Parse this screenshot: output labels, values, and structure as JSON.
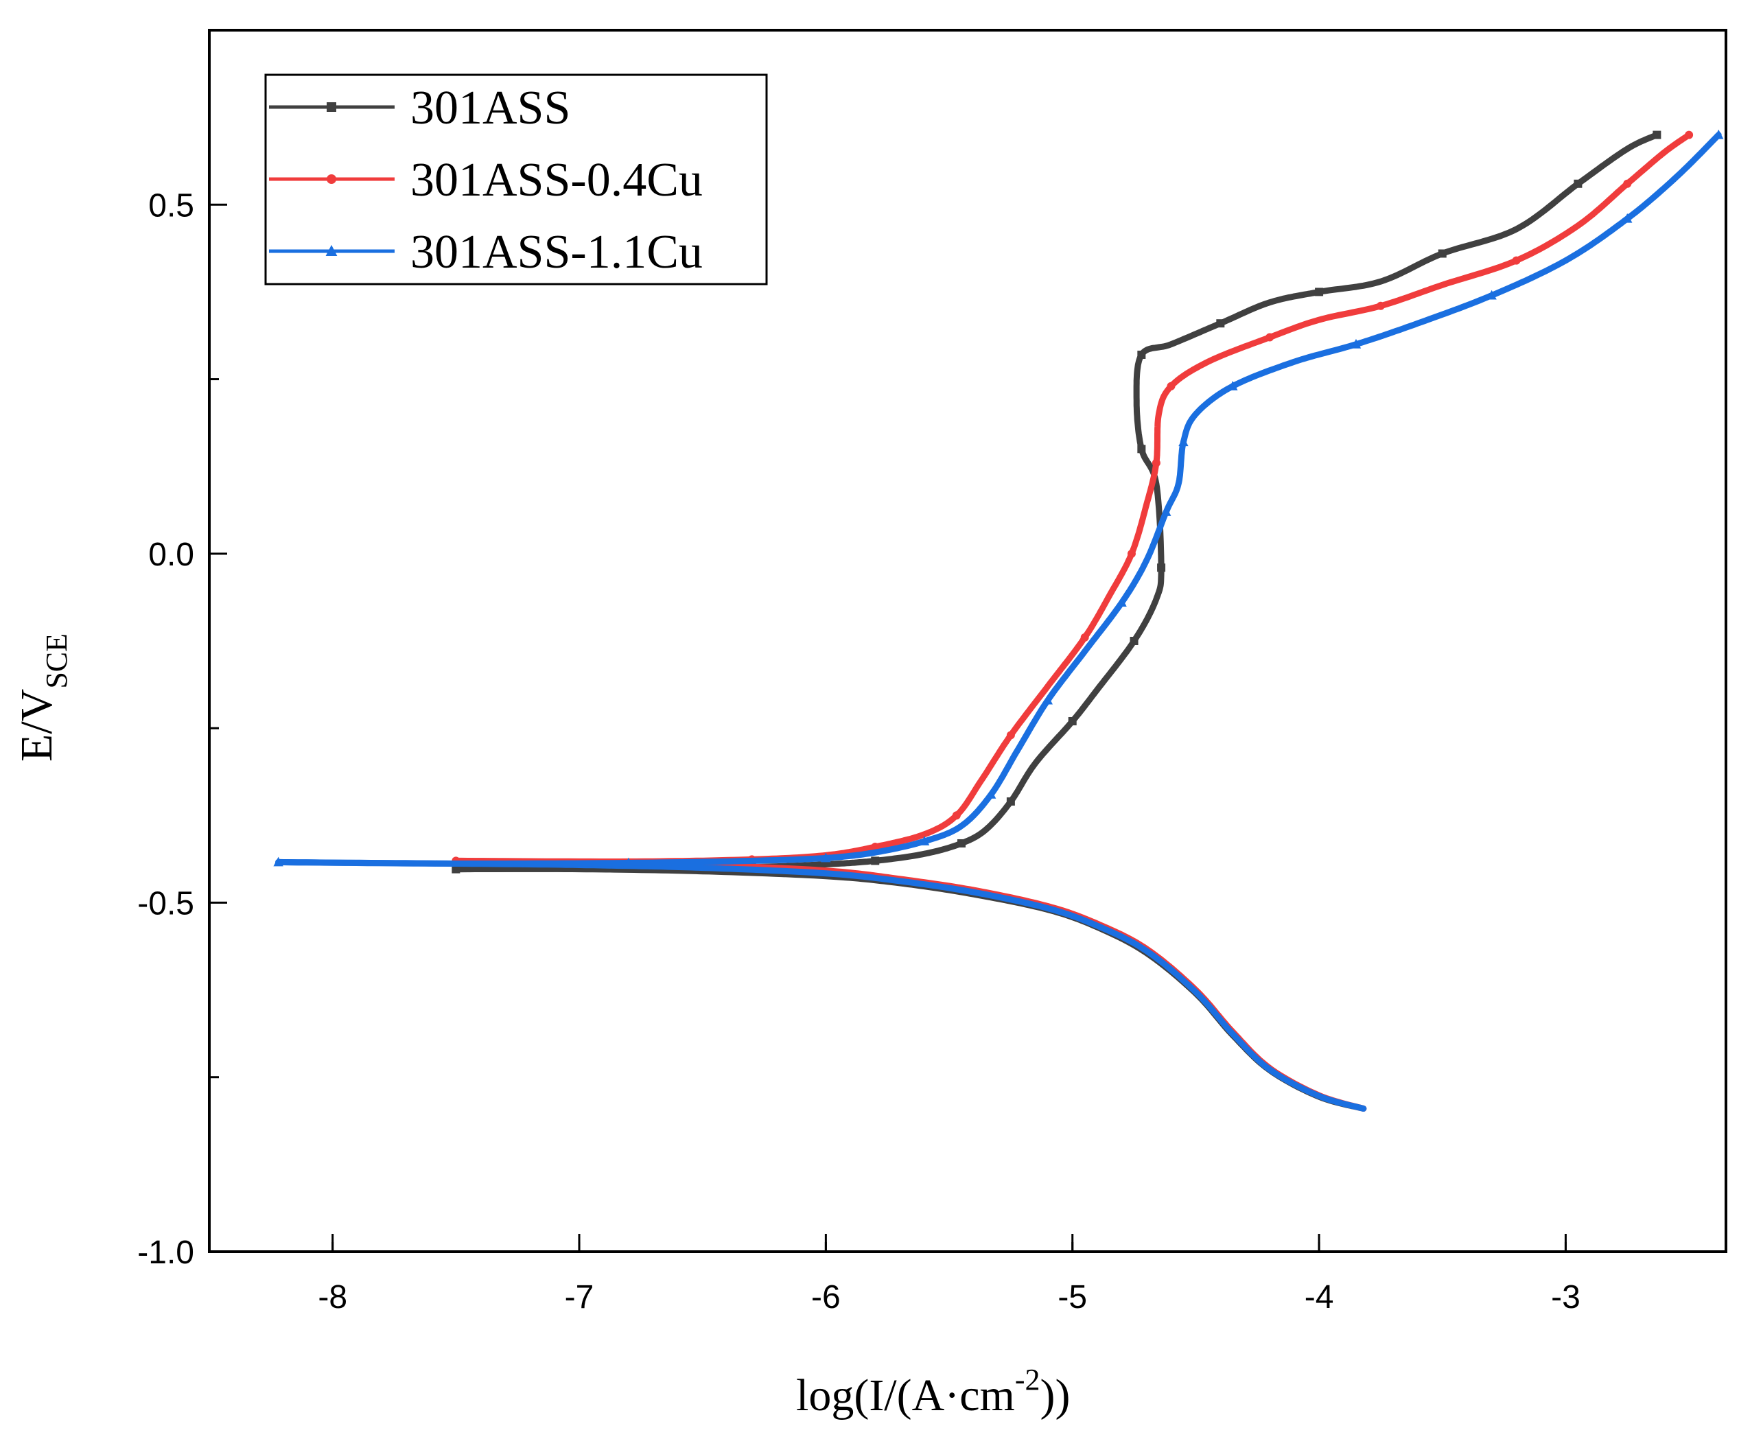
{
  "chart_data": {
    "type": "line",
    "title": "",
    "xlabel": "log(I/(A·cm⁻²))",
    "xlabel_main": "log(I/(A·cm",
    "xlabel_sup": "-2",
    "xlabel_tail": "))",
    "ylabel_main": "E/V",
    "ylabel_sub": "SCE",
    "xlim": [
      -8.5,
      -2.35
    ],
    "ylim": [
      -1.0,
      0.75
    ],
    "xticks": [
      -8,
      -7,
      -6,
      -5,
      -4,
      -3
    ],
    "xtick_labels": [
      "-8",
      "-7",
      "-6",
      "-5",
      "-4",
      "-3"
    ],
    "yticks": [
      -1.0,
      -0.5,
      0.0,
      0.5
    ],
    "ytick_labels": [
      "-1.0",
      "-0.5",
      "0.0",
      "0.5"
    ],
    "legend_position": "top-left",
    "series": [
      {
        "name": "301ASS",
        "color": "#404040",
        "marker": "square",
        "cathodic": [
          [
            -7.5,
            -0.452
          ],
          [
            -7.0,
            -0.452
          ],
          [
            -6.5,
            -0.455
          ],
          [
            -6.0,
            -0.462
          ],
          [
            -5.7,
            -0.472
          ],
          [
            -5.4,
            -0.488
          ],
          [
            -5.1,
            -0.51
          ],
          [
            -4.9,
            -0.535
          ],
          [
            -4.7,
            -0.572
          ],
          [
            -4.5,
            -0.63
          ],
          [
            -4.35,
            -0.69
          ],
          [
            -4.2,
            -0.74
          ],
          [
            -4.0,
            -0.778
          ],
          [
            -3.82,
            -0.795
          ]
        ],
        "anodic": [
          [
            -7.5,
            -0.452
          ],
          [
            -6.8,
            -0.451
          ],
          [
            -6.3,
            -0.449
          ],
          [
            -6.0,
            -0.445
          ],
          [
            -5.8,
            -0.44
          ],
          [
            -5.6,
            -0.43
          ],
          [
            -5.45,
            -0.415
          ],
          [
            -5.35,
            -0.395
          ],
          [
            -5.25,
            -0.355
          ],
          [
            -5.15,
            -0.3
          ],
          [
            -5.0,
            -0.24
          ],
          [
            -4.9,
            -0.195
          ],
          [
            -4.75,
            -0.125
          ],
          [
            -4.66,
            -0.065
          ],
          [
            -4.64,
            -0.02
          ],
          [
            -4.66,
            0.1
          ],
          [
            -4.72,
            0.15
          ],
          [
            -4.74,
            0.22
          ],
          [
            -4.72,
            0.285
          ],
          [
            -4.6,
            0.3
          ],
          [
            -4.4,
            0.33
          ],
          [
            -4.2,
            0.36
          ],
          [
            -4.0,
            0.375
          ],
          [
            -3.75,
            0.39
          ],
          [
            -3.5,
            0.43
          ],
          [
            -3.2,
            0.465
          ],
          [
            -2.95,
            0.53
          ],
          [
            -2.75,
            0.58
          ],
          [
            -2.63,
            0.6
          ]
        ]
      },
      {
        "name": "301ASS-0.4Cu",
        "color": "#f03c3c",
        "marker": "circle",
        "cathodic": [
          [
            -7.5,
            -0.44
          ],
          [
            -7.0,
            -0.442
          ],
          [
            -6.5,
            -0.446
          ],
          [
            -6.0,
            -0.454
          ],
          [
            -5.7,
            -0.466
          ],
          [
            -5.4,
            -0.482
          ],
          [
            -5.1,
            -0.505
          ],
          [
            -4.9,
            -0.53
          ],
          [
            -4.7,
            -0.566
          ],
          [
            -4.5,
            -0.625
          ],
          [
            -4.35,
            -0.685
          ],
          [
            -4.2,
            -0.737
          ],
          [
            -4.0,
            -0.776
          ],
          [
            -3.82,
            -0.795
          ]
        ],
        "anodic": [
          [
            -7.5,
            -0.44
          ],
          [
            -6.8,
            -0.441
          ],
          [
            -6.3,
            -0.438
          ],
          [
            -6.0,
            -0.432
          ],
          [
            -5.8,
            -0.42
          ],
          [
            -5.6,
            -0.402
          ],
          [
            -5.47,
            -0.375
          ],
          [
            -5.37,
            -0.325
          ],
          [
            -5.25,
            -0.26
          ],
          [
            -5.1,
            -0.19
          ],
          [
            -4.95,
            -0.12
          ],
          [
            -4.85,
            -0.06
          ],
          [
            -4.76,
            0.0
          ],
          [
            -4.7,
            0.07
          ],
          [
            -4.66,
            0.13
          ],
          [
            -4.65,
            0.2
          ],
          [
            -4.6,
            0.24
          ],
          [
            -4.45,
            0.275
          ],
          [
            -4.2,
            0.31
          ],
          [
            -4.0,
            0.335
          ],
          [
            -3.75,
            0.355
          ],
          [
            -3.5,
            0.385
          ],
          [
            -3.2,
            0.42
          ],
          [
            -2.95,
            0.47
          ],
          [
            -2.75,
            0.53
          ],
          [
            -2.6,
            0.575
          ],
          [
            -2.5,
            0.6
          ]
        ]
      },
      {
        "name": "301ASS-1.1Cu",
        "color": "#1a6fe0",
        "marker": "triangle",
        "cathodic": [
          [
            -8.22,
            -0.442
          ],
          [
            -7.5,
            -0.444
          ],
          [
            -7.0,
            -0.446
          ],
          [
            -6.5,
            -0.45
          ],
          [
            -6.0,
            -0.458
          ],
          [
            -5.7,
            -0.469
          ],
          [
            -5.4,
            -0.485
          ],
          [
            -5.1,
            -0.508
          ],
          [
            -4.9,
            -0.533
          ],
          [
            -4.7,
            -0.569
          ],
          [
            -4.5,
            -0.628
          ],
          [
            -4.35,
            -0.688
          ],
          [
            -4.2,
            -0.739
          ],
          [
            -4.0,
            -0.777
          ],
          [
            -3.82,
            -0.795
          ]
        ],
        "anodic": [
          [
            -8.22,
            -0.442
          ],
          [
            -7.5,
            -0.444
          ],
          [
            -6.8,
            -0.443
          ],
          [
            -6.3,
            -0.44
          ],
          [
            -6.0,
            -0.436
          ],
          [
            -5.8,
            -0.428
          ],
          [
            -5.6,
            -0.412
          ],
          [
            -5.45,
            -0.39
          ],
          [
            -5.33,
            -0.345
          ],
          [
            -5.22,
            -0.28
          ],
          [
            -5.1,
            -0.21
          ],
          [
            -4.95,
            -0.14
          ],
          [
            -4.8,
            -0.07
          ],
          [
            -4.7,
            -0.01
          ],
          [
            -4.62,
            0.06
          ],
          [
            -4.57,
            0.1
          ],
          [
            -4.55,
            0.16
          ],
          [
            -4.5,
            0.2
          ],
          [
            -4.35,
            0.24
          ],
          [
            -4.1,
            0.275
          ],
          [
            -3.85,
            0.3
          ],
          [
            -3.6,
            0.33
          ],
          [
            -3.3,
            0.37
          ],
          [
            -3.0,
            0.42
          ],
          [
            -2.75,
            0.48
          ],
          [
            -2.55,
            0.54
          ],
          [
            -2.38,
            0.6
          ]
        ]
      }
    ]
  }
}
